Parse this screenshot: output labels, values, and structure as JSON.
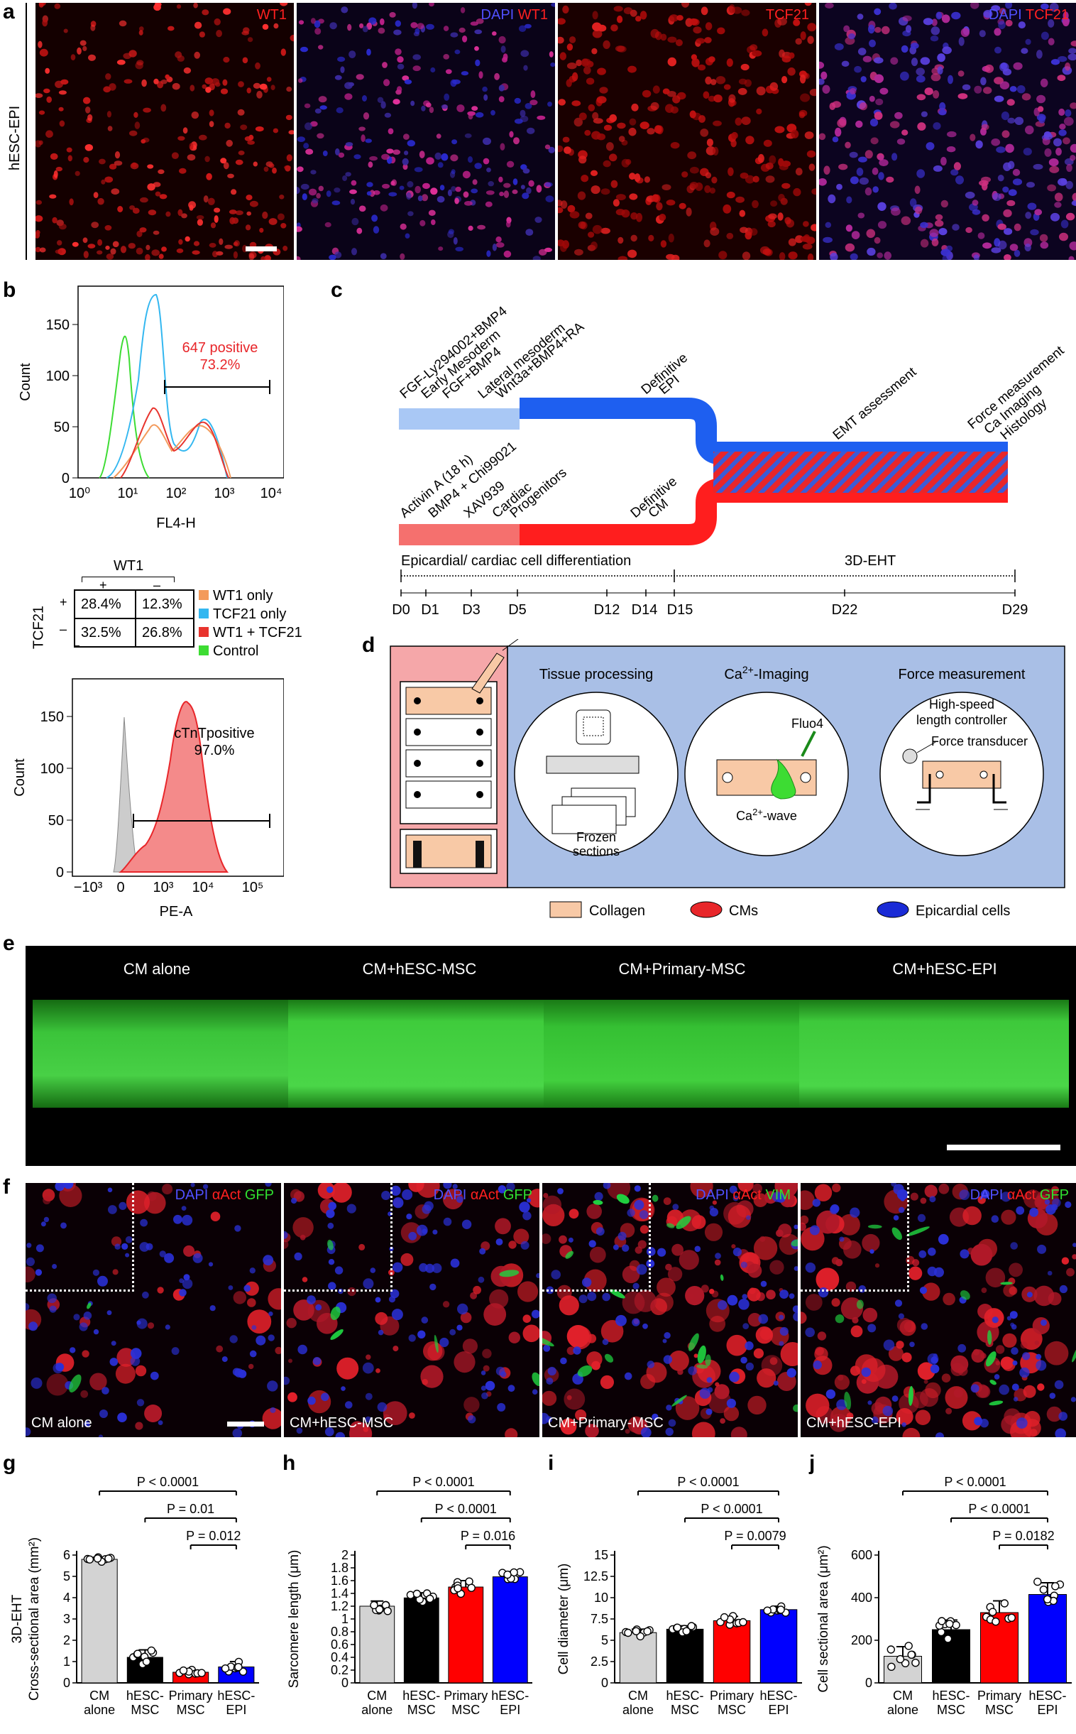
{
  "panels": {
    "a": "a",
    "b": "b",
    "c": "c",
    "d": "d",
    "e": "e",
    "f": "f",
    "g": "g",
    "h": "h",
    "i": "i",
    "j": "j"
  },
  "panel_a": {
    "row_label": "hESC-EPI",
    "images": [
      {
        "label_dapi": "",
        "label_marker": "WT1"
      },
      {
        "label_dapi": "DAPI",
        "label_marker": "WT1"
      },
      {
        "label_dapi": "",
        "label_marker": "TCF21"
      },
      {
        "label_dapi": "DAPI",
        "label_marker": "TCF21"
      }
    ]
  },
  "panel_b": {
    "hist1": {
      "ylabel": "Count",
      "xlabel": "FL4-H",
      "yticks": [
        "0",
        "50",
        "100",
        "150"
      ],
      "xticks": [
        "10⁰",
        "10¹",
        "10²",
        "10³",
        "10⁴"
      ],
      "gate_label_1": "647 positive",
      "gate_label_2": "73.2%"
    },
    "quad": {
      "col_label": "WT1",
      "col_plus": "+",
      "col_minus": "–",
      "row_label": "TCF21",
      "row_plus": "+",
      "row_minus": "–",
      "cells": [
        "28.4%",
        "12.3%",
        "32.5%",
        "26.8%"
      ]
    },
    "legend": [
      {
        "label": "WT1 only",
        "color": "#f39a5b"
      },
      {
        "label": "TCF21 only",
        "color": "#33b7f0"
      },
      {
        "label": "WT1 + TCF21",
        "color": "#e8342e"
      },
      {
        "label": "Control",
        "color": "#3ddc33"
      }
    ],
    "hist2": {
      "ylabel": "Count",
      "xlabel": "PE-A",
      "yticks": [
        "0",
        "50",
        "100",
        "150"
      ],
      "xticks": [
        "−10³",
        "0",
        "10³",
        "10⁴",
        "10⁵"
      ],
      "gate_label_1": "cTnTpositive",
      "gate_label_2": "97.0%"
    }
  },
  "panel_c": {
    "top_labels": [
      "FGF-Ly294002+BMP4",
      "Early Mesoderm",
      "FGF+BMP4",
      "Lateral mesoderm",
      "Wnt3a+BMP4+RA",
      "Definitive",
      "EPI"
    ],
    "bottom_labels": [
      "Activin A (18 h)",
      "BMP4 + Chi99021",
      "XAV939",
      "Cardiac",
      "Progenitors",
      "Definitive",
      "CM"
    ],
    "right_labels": [
      "EMT assessment",
      "Force measurement",
      "Ca Imaging",
      "Histology"
    ],
    "timeline_left": "Epicardial/ cardiac cell differentiation",
    "timeline_right": "3D-EHT",
    "days": [
      "D0",
      "D1",
      "D3",
      "D5",
      "D12",
      "D14",
      "D15",
      "D22",
      "D29"
    ]
  },
  "panel_d": {
    "tissue_title": "Tissue processing",
    "frozen_1": "Frozen",
    "frozen_2": "sections",
    "ca_title_pre": "Ca",
    "ca_title_sup": "2+",
    "ca_title_post": "-Imaging",
    "fluo4": "Fluo4",
    "ca_wave_pre": "Ca",
    "ca_wave_sup": "2+",
    "ca_wave_post": "-wave",
    "force_title": "Force measurement",
    "hs_1": "High-speed",
    "hs_2": "length controller",
    "force_transducer": "Force transducer",
    "legend": [
      {
        "label": "Collagen",
        "color": "#f8c9a6"
      },
      {
        "label": "CMs",
        "color": "#e8262a"
      },
      {
        "label": "Epicardial cells",
        "color": "#1a2bd6"
      }
    ]
  },
  "panel_e": {
    "labels": [
      "CM alone",
      "CM+hESC-MSC",
      "CM+Primary-MSC",
      "CM+hESC-EPI"
    ]
  },
  "panel_f": {
    "images": [
      {
        "name": "CM alone",
        "l1": "DAPI",
        "l2": "αAct",
        "l3": "GFP"
      },
      {
        "name": "CM+hESC-MSC",
        "l1": "DAPI",
        "l2": "αAct",
        "l3": "GFP"
      },
      {
        "name": "CM+Primary-MSC",
        "l1": "DAPI",
        "l2": "αAct",
        "l3": "VIM"
      },
      {
        "name": "CM+hESC-EPI",
        "l1": "DAPI",
        "l2": "αAct",
        "l3": "GFP"
      }
    ]
  },
  "chart_data": [
    {
      "type": "bar",
      "panel": "g",
      "categories": [
        "CM alone",
        "hESC-MSC",
        "Primary MSC",
        "hESC-EPI"
      ],
      "category_lines": [
        [
          "CM",
          "alone"
        ],
        [
          "hESC-",
          "MSC"
        ],
        [
          "Primary",
          "MSC"
        ],
        [
          "hESC-",
          "EPI"
        ]
      ],
      "values": [
        5.8,
        1.2,
        0.5,
        0.75
      ],
      "errors": [
        0.1,
        0.35,
        0.1,
        0.25
      ],
      "colors": [
        "#d3d3d3",
        "#000000",
        "#ff0000",
        "#0000ff"
      ],
      "ylabel_outer": "3D-EHT",
      "ylabel": "Cross-sectional area (mm²)",
      "ylim": [
        0,
        6
      ],
      "yticks": [
        0,
        1,
        2,
        3,
        4,
        5,
        6
      ],
      "significance": [
        {
          "from": 0,
          "to": 3,
          "label": "P < 0.0001"
        },
        {
          "from": 1,
          "to": 3,
          "label": "P = 0.01"
        },
        {
          "from": 2,
          "to": 3,
          "label": "P = 0.012"
        }
      ]
    },
    {
      "type": "bar",
      "panel": "h",
      "categories": [
        "CM alone",
        "hESC-MSC",
        "Primary MSC",
        "hESC-EPI"
      ],
      "category_lines": [
        [
          "CM",
          "alone"
        ],
        [
          "hESC-",
          "MSC"
        ],
        [
          "Primary",
          "MSC"
        ],
        [
          "hESC-",
          "EPI"
        ]
      ],
      "values": [
        1.2,
        1.33,
        1.5,
        1.66
      ],
      "errors": [
        0.08,
        0.08,
        0.1,
        0.08
      ],
      "colors": [
        "#d3d3d3",
        "#000000",
        "#ff0000",
        "#0000ff"
      ],
      "ylabel": "Sarcomere length (μm)",
      "ylim": [
        0,
        2
      ],
      "yticks": [
        0,
        0.2,
        0.4,
        0.6,
        0.8,
        1.0,
        1.2,
        1.4,
        1.6,
        1.8,
        2.0
      ],
      "significance": [
        {
          "from": 0,
          "to": 3,
          "label": "P < 0.0001"
        },
        {
          "from": 1,
          "to": 3,
          "label": "P < 0.0001"
        },
        {
          "from": 2,
          "to": 3,
          "label": "P = 0.016"
        }
      ]
    },
    {
      "type": "bar",
      "panel": "i",
      "categories": [
        "CM alone",
        "hESC-MSC",
        "Primary MSC",
        "hESC-EPI"
      ],
      "category_lines": [
        [
          "CM",
          "alone"
        ],
        [
          "hESC-",
          "MSC"
        ],
        [
          "Primary",
          "MSC"
        ],
        [
          "hESC-",
          "EPI"
        ]
      ],
      "values": [
        5.9,
        6.3,
        7.3,
        8.6
      ],
      "errors": [
        0.4,
        0.4,
        0.5,
        0.4
      ],
      "colors": [
        "#d3d3d3",
        "#000000",
        "#ff0000",
        "#0000ff"
      ],
      "ylabel": "Cell diameter (μm)",
      "ylim": [
        0,
        15
      ],
      "yticks": [
        0,
        2.5,
        5,
        7.5,
        10,
        12.5,
        15
      ],
      "significance": [
        {
          "from": 0,
          "to": 3,
          "label": "P < 0.0001"
        },
        {
          "from": 1,
          "to": 3,
          "label": "P < 0.0001"
        },
        {
          "from": 2,
          "to": 3,
          "label": "P = 0.0079"
        }
      ]
    },
    {
      "type": "bar",
      "panel": "j",
      "categories": [
        "CM alone",
        "hESC-MSC",
        "Primary MSC",
        "hESC-EPI"
      ],
      "category_lines": [
        [
          "CM",
          "alone"
        ],
        [
          "hESC-",
          "MSC"
        ],
        [
          "Primary",
          "MSC"
        ],
        [
          "hESC-",
          "EPI"
        ]
      ],
      "values": [
        125,
        250,
        330,
        415
      ],
      "errors": [
        45,
        45,
        55,
        55
      ],
      "colors": [
        "#d3d3d3",
        "#000000",
        "#ff0000",
        "#0000ff"
      ],
      "ylabel": "Cell sectional area (μm²)",
      "ylim": [
        0,
        600
      ],
      "yticks": [
        0,
        200,
        400,
        600
      ],
      "significance": [
        {
          "from": 0,
          "to": 3,
          "label": "P < 0.0001"
        },
        {
          "from": 1,
          "to": 3,
          "label": "P < 0.0001"
        },
        {
          "from": 2,
          "to": 3,
          "label": "P = 0.0182"
        }
      ]
    }
  ]
}
